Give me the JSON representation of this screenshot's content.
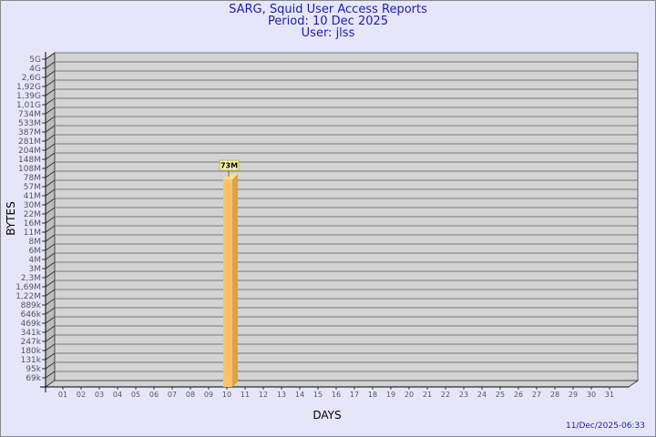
{
  "chart_data": {
    "type": "bar",
    "title": "SARG, Squid User Access Reports",
    "subtitle_period": "Period: 10 Dec 2025",
    "subtitle_user": "User: jlss",
    "xlabel": "DAYS",
    "ylabel": "BYTES",
    "y_scale": "log",
    "grid": true,
    "y_ticks": [
      "5G",
      "4G",
      "2,6G",
      "1,92G",
      "1,39G",
      "1,01G",
      "734M",
      "533M",
      "387M",
      "281M",
      "204M",
      "148M",
      "108M",
      "78M",
      "57M",
      "41M",
      "30M",
      "22M",
      "16M",
      "11M",
      "8M",
      "6M",
      "4M",
      "3M",
      "2,3M",
      "1,69M",
      "1,22M",
      "889k",
      "646k",
      "469k",
      "341k",
      "247k",
      "180k",
      "131k",
      "95k",
      "69k"
    ],
    "categories": [
      "01",
      "02",
      "03",
      "04",
      "05",
      "06",
      "07",
      "08",
      "09",
      "10",
      "11",
      "12",
      "13",
      "14",
      "15",
      "16",
      "17",
      "18",
      "19",
      "20",
      "21",
      "22",
      "23",
      "24",
      "25",
      "26",
      "27",
      "28",
      "29",
      "30",
      "31"
    ],
    "bars": [
      {
        "category": "10",
        "value": "73M",
        "label": "73M"
      }
    ],
    "timestamp": "11/Dec/2025-06:33",
    "colors": {
      "bar_front": "#ffc266",
      "bar_side": "#dba24a",
      "bar_top": "#ffe08a",
      "plot": "#d3d3d3",
      "wall": "#bdbdbd",
      "title": "#1c1cb4"
    }
  }
}
